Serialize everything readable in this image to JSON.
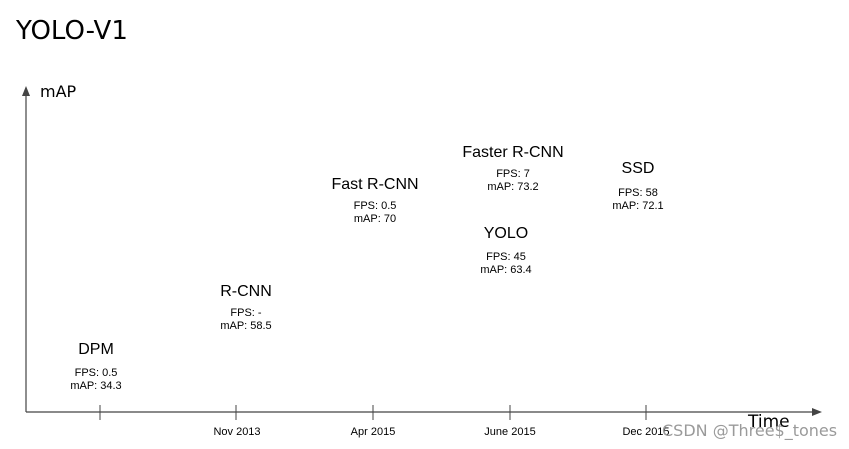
{
  "title": "YOLO-V1",
  "axes": {
    "y_label": "mAP",
    "x_label": "Time"
  },
  "ticks": [
    "Nov 2013",
    "Apr 2015",
    "June 2015",
    "Dec 2015"
  ],
  "models": [
    {
      "name": "DPM",
      "fps": "FPS: 0.5",
      "map": "mAP: 34.3"
    },
    {
      "name": "R-CNN",
      "fps": "FPS: -",
      "map": "mAP: 58.5"
    },
    {
      "name": "Fast R-CNN",
      "fps": "FPS: 0.5",
      "map": "mAP: 70"
    },
    {
      "name": "Faster R-CNN",
      "fps": "FPS: 7",
      "map": "mAP: 73.2"
    },
    {
      "name": "YOLO",
      "fps": "FPS: 45",
      "map": "mAP: 63.4"
    },
    {
      "name": "SSD",
      "fps": "FPS: 58",
      "map": "mAP: 72.1"
    }
  ],
  "watermark": "CSDN @Three$_tones"
}
